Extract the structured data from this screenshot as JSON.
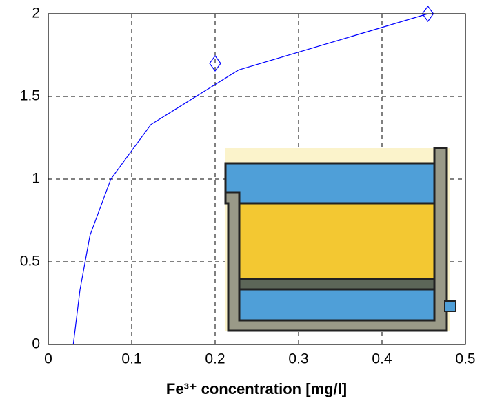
{
  "chart_data": {
    "type": "line",
    "xlabel": "Fe³⁺ concentration [mg/l]",
    "series": [
      {
        "color": "#0000ff",
        "style": "line",
        "x": [
          0.03,
          0.038,
          0.05,
          0.075,
          0.123,
          0.228,
          0.455
        ],
        "values": [
          0,
          0.33,
          0.66,
          1.0,
          1.33,
          1.66,
          2.0
        ]
      },
      {
        "color": "#0000ff",
        "style": "diamond",
        "x": [
          0.2,
          0.455
        ],
        "values": [
          1.7,
          2.0
        ]
      }
    ],
    "xlim": [
      0,
      0.5
    ],
    "xticks": [
      0,
      0.1,
      0.2,
      0.3,
      0.4,
      0.5
    ],
    "ylim": [
      0,
      2
    ],
    "yticks": [
      0,
      0.5,
      1,
      1.5,
      2
    ],
    "grid": true
  }
}
